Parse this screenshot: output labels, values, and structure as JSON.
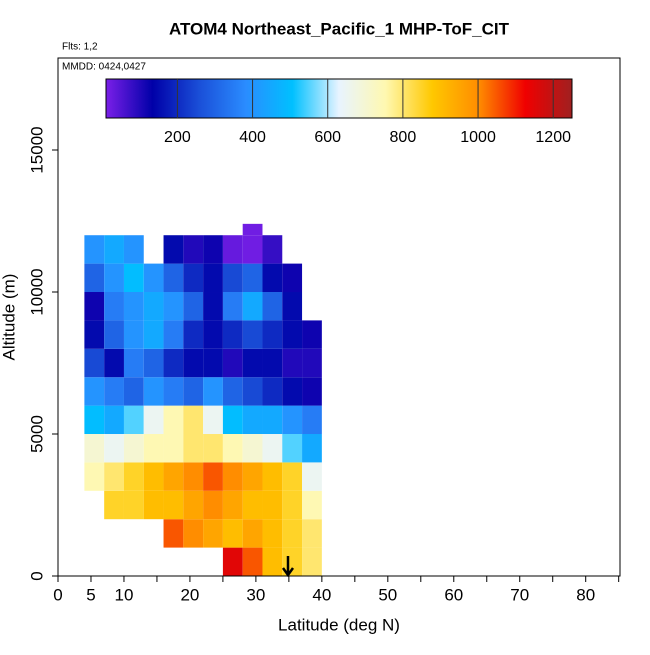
{
  "chart_data": {
    "type": "heatmap",
    "title": "ATOM4 Northeast_Pacific_1 MHP-ToF_CIT",
    "subtitle": "Flts: 1,2",
    "annotation": "MMDD: 0424,0427",
    "x_label": "Latitude (deg N)",
    "y_label": "Altitude (m)",
    "xlim": [
      0,
      85.2
    ],
    "ylim": [
      0,
      18240
    ],
    "xticks": [
      0,
      5,
      10,
      20,
      30,
      40,
      50,
      60,
      70,
      80
    ],
    "xminorticks": [
      15,
      25,
      35,
      45,
      55,
      65,
      75,
      85
    ],
    "yticks": [
      0,
      5000,
      10000,
      15000
    ],
    "x_edges": [
      4,
      7,
      10,
      13,
      16,
      19,
      22,
      25,
      28,
      31,
      34,
      37,
      40
    ],
    "y_edges": [
      0,
      1000,
      2000,
      3000,
      4000,
      5000,
      6000,
      7000,
      8000,
      9000,
      10000,
      11000,
      12000,
      12400
    ],
    "values": [
      [
        null,
        null,
        null,
        null,
        null,
        null,
        null,
        1150,
        1050,
        900,
        850,
        800
      ],
      [
        null,
        null,
        null,
        null,
        1050,
        1000,
        950,
        900,
        950,
        900,
        850,
        800
      ],
      [
        null,
        850,
        850,
        900,
        900,
        950,
        1000,
        950,
        900,
        900,
        850,
        750
      ],
      [
        750,
        800,
        850,
        900,
        950,
        1000,
        1050,
        1000,
        950,
        900,
        850,
        650
      ],
      [
        700,
        650,
        700,
        750,
        750,
        800,
        800,
        750,
        700,
        650,
        550,
        450
      ],
      [
        500,
        450,
        550,
        650,
        750,
        800,
        650,
        500,
        450,
        450,
        400,
        350
      ],
      [
        400,
        350,
        300,
        400,
        350,
        300,
        400,
        300,
        250,
        200,
        150,
        120
      ],
      [
        250,
        150,
        350,
        300,
        200,
        150,
        150,
        100,
        150,
        150,
        100,
        100
      ],
      [
        150,
        300,
        400,
        450,
        350,
        200,
        150,
        200,
        250,
        200,
        150,
        120
      ],
      [
        120,
        350,
        400,
        450,
        400,
        300,
        150,
        350,
        450,
        300,
        150,
        null
      ],
      [
        300,
        400,
        500,
        400,
        300,
        200,
        150,
        250,
        300,
        150,
        120,
        null
      ],
      [
        400,
        450,
        400,
        null,
        150,
        100,
        120,
        30,
        20,
        80,
        null,
        null
      ],
      [
        null,
        null,
        null,
        null,
        null,
        null,
        null,
        null,
        20,
        null,
        null,
        null
      ]
    ],
    "colorbar": {
      "lim": [
        10,
        1250
      ],
      "ticks": [
        200,
        400,
        600,
        800,
        1000,
        1200
      ],
      "colors": [
        "#7a1fe8",
        "#0000a8",
        "#1a4fd8",
        "#2a8cff",
        "#00c0ff",
        "#e8f4ff",
        "#fff8b0",
        "#ffc800",
        "#ff8c00",
        "#f00000",
        "#a02020"
      ]
    }
  }
}
